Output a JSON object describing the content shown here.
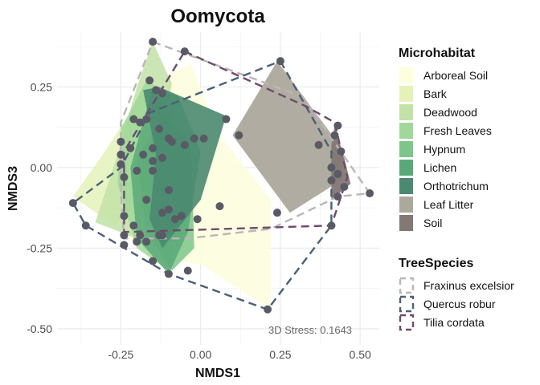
{
  "chart_data": {
    "type": "scatter",
    "title": "Oomycota",
    "xlabel": "NMDS1",
    "ylabel": "NMDS3",
    "xlim": [
      -0.45,
      0.56
    ],
    "ylim": [
      -0.55,
      0.42
    ],
    "x_ticks": [
      -0.25,
      0.0,
      0.25,
      0.5
    ],
    "x_tick_labels": [
      "-0.25",
      "0.00",
      "0.25",
      "0.50"
    ],
    "y_ticks": [
      -0.5,
      -0.25,
      0.0,
      0.25
    ],
    "y_tick_labels": [
      "-0.50",
      "-0.25",
      "0.00",
      "0.25"
    ],
    "grid": true,
    "annotation": "3D Stress: 0.1643",
    "legend_microhabitat": {
      "title": "Microhabitat",
      "entries": [
        {
          "label": "Arboreal Soil",
          "color": "#fdfedc"
        },
        {
          "label": "Bark",
          "color": "#e4f2b8"
        },
        {
          "label": "Deadwood",
          "color": "#c2e2a8"
        },
        {
          "label": "Fresh Leaves",
          "color": "#a0d89a"
        },
        {
          "label": "Hypnum",
          "color": "#7cc68a"
        },
        {
          "label": "Lichen",
          "color": "#5aa878"
        },
        {
          "label": "Orthotrichum",
          "color": "#4a8a70"
        },
        {
          "label": "Leaf Litter",
          "color": "#aca89c"
        },
        {
          "label": "Soil",
          "color": "#837873"
        }
      ]
    },
    "legend_treespecies": {
      "title": "TreeSpecies",
      "entries": [
        {
          "label": "Fraxinus excelsior",
          "color": "#bdb5b8"
        },
        {
          "label": "Quercus robur",
          "color": "#4b6078"
        },
        {
          "label": "Tilia cordata",
          "color": "#6e4a6e"
        }
      ]
    },
    "hulls": [
      {
        "group": "Arboreal Soil",
        "color": "#fdfedc",
        "opacity": 0.85,
        "points": [
          [
            -0.1,
            0.29
          ],
          [
            -0.03,
            0.32
          ],
          [
            0.06,
            0.1
          ],
          [
            0.22,
            -0.1
          ],
          [
            0.22,
            -0.44
          ],
          [
            0.0,
            -0.3
          ],
          [
            -0.15,
            -0.28
          ],
          [
            -0.25,
            -0.2
          ],
          [
            -0.2,
            0.08
          ]
        ]
      },
      {
        "group": "Bark",
        "color": "#e4f2b8",
        "opacity": 0.85,
        "points": [
          [
            -0.17,
            0.25
          ],
          [
            -0.15,
            0.15
          ],
          [
            -0.2,
            -0.1
          ],
          [
            -0.27,
            -0.18
          ],
          [
            -0.4,
            -0.09
          ],
          [
            -0.3,
            0.05
          ]
        ]
      },
      {
        "group": "Deadwood",
        "color": "#c2e2a8",
        "opacity": 0.85,
        "points": [
          [
            -0.15,
            0.39
          ],
          [
            -0.09,
            0.26
          ],
          [
            -0.15,
            -0.05
          ],
          [
            -0.2,
            -0.22
          ],
          [
            -0.33,
            -0.17
          ],
          [
            -0.26,
            0.04
          ],
          [
            -0.2,
            0.25
          ]
        ]
      },
      {
        "group": "Fresh Leaves",
        "color": "#a0d89a",
        "opacity": 0.85,
        "points": [
          [
            -0.17,
            0.27
          ],
          [
            -0.1,
            0.23
          ],
          [
            -0.05,
            -0.12
          ],
          [
            -0.1,
            -0.32
          ],
          [
            -0.2,
            -0.25
          ],
          [
            -0.26,
            -0.05
          ],
          [
            -0.25,
            0.12
          ]
        ]
      },
      {
        "group": "Hypnum",
        "color": "#7cc68a",
        "opacity": 0.85,
        "points": [
          [
            -0.12,
            0.17
          ],
          [
            -0.03,
            0.08
          ],
          [
            -0.02,
            -0.25
          ],
          [
            -0.09,
            -0.32
          ],
          [
            -0.17,
            -0.2
          ],
          [
            -0.2,
            0.02
          ]
        ]
      },
      {
        "group": "Lichen",
        "color": "#5aa878",
        "opacity": 0.85,
        "points": [
          [
            -0.15,
            0.25
          ],
          [
            -0.07,
            0.22
          ],
          [
            0.0,
            0.05
          ],
          [
            -0.04,
            -0.2
          ],
          [
            -0.1,
            -0.33
          ],
          [
            -0.2,
            -0.22
          ],
          [
            -0.22,
            0.0
          ]
        ]
      },
      {
        "group": "Orthotrichum",
        "color": "#4a8a70",
        "opacity": 0.9,
        "points": [
          [
            -0.18,
            0.24
          ],
          [
            -0.13,
            0.25
          ],
          [
            0.08,
            0.16
          ],
          [
            0.0,
            -0.1
          ],
          [
            -0.12,
            -0.25
          ],
          [
            -0.16,
            -0.16
          ],
          [
            -0.14,
            0.04
          ]
        ]
      },
      {
        "group": "Leaf Litter",
        "color": "#aca89c",
        "opacity": 0.95,
        "points": [
          [
            0.24,
            0.33
          ],
          [
            0.45,
            0.05
          ],
          [
            0.44,
            -0.04
          ],
          [
            0.28,
            -0.14
          ],
          [
            0.1,
            0.1
          ]
        ]
      },
      {
        "group": "Soil",
        "color": "#837873",
        "opacity": 0.95,
        "points": [
          [
            0.42,
            0.13
          ],
          [
            0.45,
            0.03
          ],
          [
            0.47,
            -0.05
          ],
          [
            0.41,
            -0.1
          ],
          [
            0.41,
            0.07
          ]
        ]
      }
    ],
    "tree_hulls": [
      {
        "group": "Fraxinus excelsior",
        "color": "#bdb5b8",
        "points": [
          [
            -0.15,
            0.39
          ],
          [
            0.32,
            0.22
          ],
          [
            0.53,
            -0.08
          ],
          [
            0.43,
            -0.09
          ],
          [
            0.22,
            -0.19
          ],
          [
            -0.04,
            -0.22
          ],
          [
            -0.24,
            -0.22
          ],
          [
            -0.25,
            -0.08
          ],
          [
            -0.25,
            0.14
          ]
        ]
      },
      {
        "group": "Quercus robur",
        "color": "#4b6078",
        "points": [
          [
            0.25,
            0.33
          ],
          [
            0.41,
            0.05
          ],
          [
            0.41,
            -0.18
          ],
          [
            0.21,
            -0.44
          ],
          [
            -0.1,
            -0.33
          ],
          [
            -0.36,
            -0.18
          ],
          [
            -0.4,
            -0.11
          ],
          [
            -0.25,
            0.0
          ],
          [
            -0.16,
            0.17
          ]
        ]
      },
      {
        "group": "Tilia cordata",
        "color": "#6e4a6e",
        "points": [
          [
            -0.05,
            0.36
          ],
          [
            0.33,
            0.19
          ],
          [
            0.42,
            0.14
          ],
          [
            0.46,
            -0.03
          ],
          [
            0.41,
            -0.18
          ],
          [
            -0.24,
            -0.2
          ],
          [
            -0.24,
            0.05
          ]
        ]
      }
    ],
    "points": [
      [
        -0.15,
        0.39
      ],
      [
        -0.05,
        0.36
      ],
      [
        0.25,
        0.33
      ],
      [
        -0.16,
        0.27
      ],
      [
        -0.14,
        0.24
      ],
      [
        -0.12,
        0.23
      ],
      [
        -0.21,
        0.15
      ],
      [
        -0.19,
        0.14
      ],
      [
        -0.17,
        0.15
      ],
      [
        -0.13,
        0.12
      ],
      [
        0.08,
        0.15
      ],
      [
        -0.25,
        0.08
      ],
      [
        -0.22,
        0.06
      ],
      [
        -0.15,
        0.06
      ],
      [
        -0.1,
        0.09
      ],
      [
        -0.09,
        0.08
      ],
      [
        -0.02,
        0.09
      ],
      [
        0.01,
        0.09
      ],
      [
        -0.25,
        0.04
      ],
      [
        -0.18,
        0.04
      ],
      [
        -0.15,
        0.02
      ],
      [
        -0.12,
        0.03
      ],
      [
        -0.05,
        0.07
      ],
      [
        -0.25,
        0.01
      ],
      [
        -0.24,
        -0.03
      ],
      [
        -0.2,
        -0.01
      ],
      [
        -0.15,
        -0.01
      ],
      [
        -0.1,
        -0.07
      ],
      [
        0.12,
        0.1
      ],
      [
        0.37,
        0.07
      ],
      [
        0.43,
        0.13
      ],
      [
        0.42,
        0.1
      ],
      [
        0.44,
        0.05
      ],
      [
        0.41,
        0.0
      ],
      [
        0.43,
        -0.02
      ],
      [
        0.41,
        -0.04
      ],
      [
        0.45,
        -0.06
      ],
      [
        0.53,
        -0.08
      ],
      [
        0.24,
        -0.14
      ],
      [
        0.06,
        -0.12
      ],
      [
        -0.4,
        -0.11
      ],
      [
        -0.24,
        -0.15
      ],
      [
        -0.17,
        -0.1
      ],
      [
        -0.12,
        -0.14
      ],
      [
        -0.1,
        -0.13
      ],
      [
        -0.08,
        -0.16
      ],
      [
        -0.06,
        -0.15
      ],
      [
        -0.01,
        -0.16
      ],
      [
        -0.36,
        -0.18
      ],
      [
        -0.21,
        -0.18
      ],
      [
        -0.2,
        -0.23
      ],
      [
        -0.13,
        -0.21
      ],
      [
        -0.24,
        -0.21
      ],
      [
        -0.24,
        -0.24
      ],
      [
        -0.19,
        -0.21
      ],
      [
        -0.17,
        -0.23
      ],
      [
        -0.12,
        -0.21
      ],
      [
        -0.1,
        -0.33
      ],
      [
        -0.15,
        -0.29
      ],
      [
        -0.04,
        -0.32
      ],
      [
        0.21,
        -0.44
      ],
      [
        0.41,
        -0.18
      ],
      [
        0.43,
        -0.09
      ]
    ]
  }
}
